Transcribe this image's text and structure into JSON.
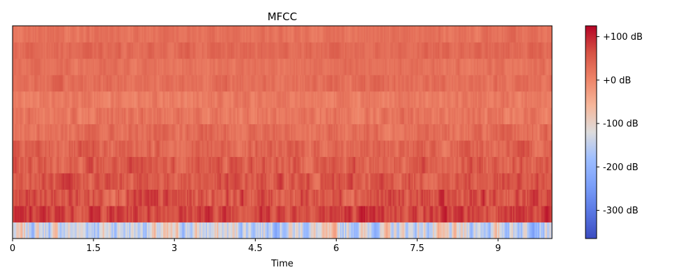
{
  "chart_data": {
    "type": "heatmap",
    "title": "MFCC",
    "xlabel": "Time",
    "ylabel": "",
    "xlim": [
      0,
      10
    ],
    "x_ticks": [
      0,
      1.5,
      3,
      4.5,
      6,
      7.5,
      9
    ],
    "x_tick_labels": [
      "0",
      "1.5",
      "3",
      "4.5",
      "6",
      "7.5",
      "9"
    ],
    "n_coefficients": 13,
    "n_frames": 430,
    "colormap": "coolwarm",
    "colorbar": {
      "vmin": -365,
      "vmax": 125,
      "ticks": [
        100,
        0,
        -100,
        -200,
        -300
      ],
      "tick_labels": [
        "+100 dB",
        "+0 dB",
        "-100 dB",
        "-200 dB",
        "-300 dB"
      ]
    },
    "coefficient_levels_db": [
      {
        "coefficient": 0,
        "mean": -130,
        "spread": 55
      },
      {
        "coefficient": 1,
        "mean": 75,
        "spread": 22
      },
      {
        "coefficient": 2,
        "mean": 60,
        "spread": 25
      },
      {
        "coefficient": 3,
        "mean": 55,
        "spread": 20
      },
      {
        "coefficient": 4,
        "mean": 50,
        "spread": 20
      },
      {
        "coefficient": 5,
        "mean": 40,
        "spread": 18
      },
      {
        "coefficient": 6,
        "mean": 30,
        "spread": 15
      },
      {
        "coefficient": 7,
        "mean": 20,
        "spread": 15
      },
      {
        "coefficient": 8,
        "mean": 15,
        "spread": 12
      },
      {
        "coefficient": 9,
        "mean": 30,
        "spread": 12
      },
      {
        "coefficient": 10,
        "mean": 25,
        "spread": 10
      },
      {
        "coefficient": 11,
        "mean": 35,
        "spread": 10
      },
      {
        "coefficient": 12,
        "mean": 25,
        "spread": 10
      }
    ]
  }
}
